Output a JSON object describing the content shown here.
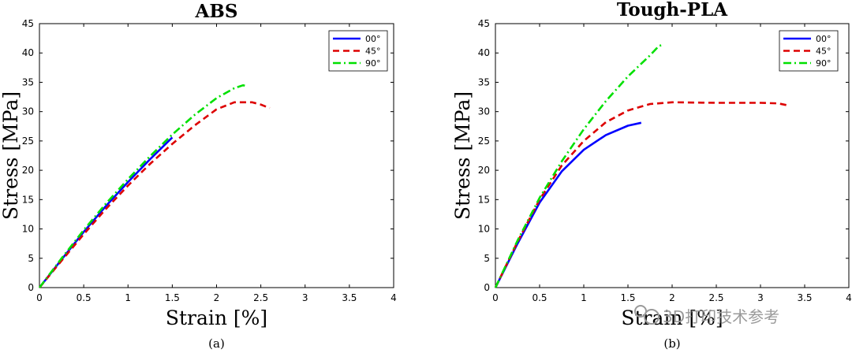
{
  "watermark": "3D打印技术参考",
  "chart_data": [
    {
      "type": "line",
      "title": "ABS",
      "xlabel": "Strain [%]",
      "ylabel": "Stress [MPa]",
      "caption": "(a)",
      "xlim": [
        0,
        4
      ],
      "ylim": [
        0,
        45
      ],
      "xticks": [
        0,
        0.5,
        1,
        1.5,
        2,
        2.5,
        3,
        3.5,
        4
      ],
      "yticks": [
        0,
        5,
        10,
        15,
        20,
        25,
        30,
        35,
        40,
        45
      ],
      "legend_position": "top-right",
      "series": [
        {
          "name": "00°",
          "color": "#0000ff",
          "dash": "solid",
          "x": [
            0,
            0.25,
            0.5,
            0.75,
            1.0,
            1.25,
            1.5
          ],
          "y": [
            0,
            4.8,
            9.5,
            13.9,
            18.0,
            21.9,
            25.6
          ]
        },
        {
          "name": "45°",
          "color": "#dd0000",
          "dash": "dash",
          "x": [
            0,
            0.25,
            0.5,
            0.75,
            1.0,
            1.25,
            1.5,
            1.75,
            2.0,
            2.2,
            2.4,
            2.5,
            2.6
          ],
          "y": [
            0,
            4.6,
            9.1,
            13.4,
            17.4,
            21.1,
            24.5,
            27.6,
            30.4,
            31.6,
            31.6,
            31.2,
            30.6
          ]
        },
        {
          "name": "90°",
          "color": "#00e000",
          "dash": "dashdot",
          "x": [
            0,
            0.25,
            0.5,
            0.75,
            1.0,
            1.25,
            1.5,
            1.75,
            2.0,
            2.2,
            2.3,
            2.35
          ],
          "y": [
            0,
            5.0,
            9.8,
            14.3,
            18.5,
            22.4,
            26.1,
            29.4,
            32.3,
            34.0,
            34.5,
            34.3
          ]
        }
      ]
    },
    {
      "type": "line",
      "title": "Tough-PLA",
      "xlabel": "Strain [%]",
      "ylabel": "Stress [MPa]",
      "caption": "(b)",
      "xlim": [
        0,
        4
      ],
      "ylim": [
        0,
        45
      ],
      "xticks": [
        0,
        0.5,
        1,
        1.5,
        2,
        2.5,
        3,
        3.5,
        4
      ],
      "yticks": [
        0,
        5,
        10,
        15,
        20,
        25,
        30,
        35,
        40,
        45
      ],
      "legend_position": "top-right",
      "series": [
        {
          "name": "00°",
          "color": "#0000ff",
          "dash": "solid",
          "x": [
            0,
            0.25,
            0.5,
            0.75,
            1.0,
            1.25,
            1.5,
            1.65
          ],
          "y": [
            0,
            7.5,
            14.5,
            19.8,
            23.5,
            26.0,
            27.6,
            28.1
          ]
        },
        {
          "name": "45°",
          "color": "#dd0000",
          "dash": "dash",
          "x": [
            0,
            0.25,
            0.5,
            0.75,
            1.0,
            1.25,
            1.5,
            1.75,
            2.0,
            2.5,
            3.0,
            3.2,
            3.33
          ],
          "y": [
            0,
            7.8,
            15.0,
            20.8,
            25.0,
            28.2,
            30.2,
            31.3,
            31.6,
            31.5,
            31.5,
            31.4,
            31.0
          ]
        },
        {
          "name": "90°",
          "color": "#00e000",
          "dash": "dashdot",
          "x": [
            0,
            0.25,
            0.5,
            0.75,
            1.0,
            1.25,
            1.5,
            1.75,
            1.85,
            1.9
          ],
          "y": [
            0,
            8.0,
            15.3,
            21.5,
            27.0,
            31.8,
            36.0,
            39.6,
            41.2,
            41.4
          ]
        }
      ]
    }
  ]
}
